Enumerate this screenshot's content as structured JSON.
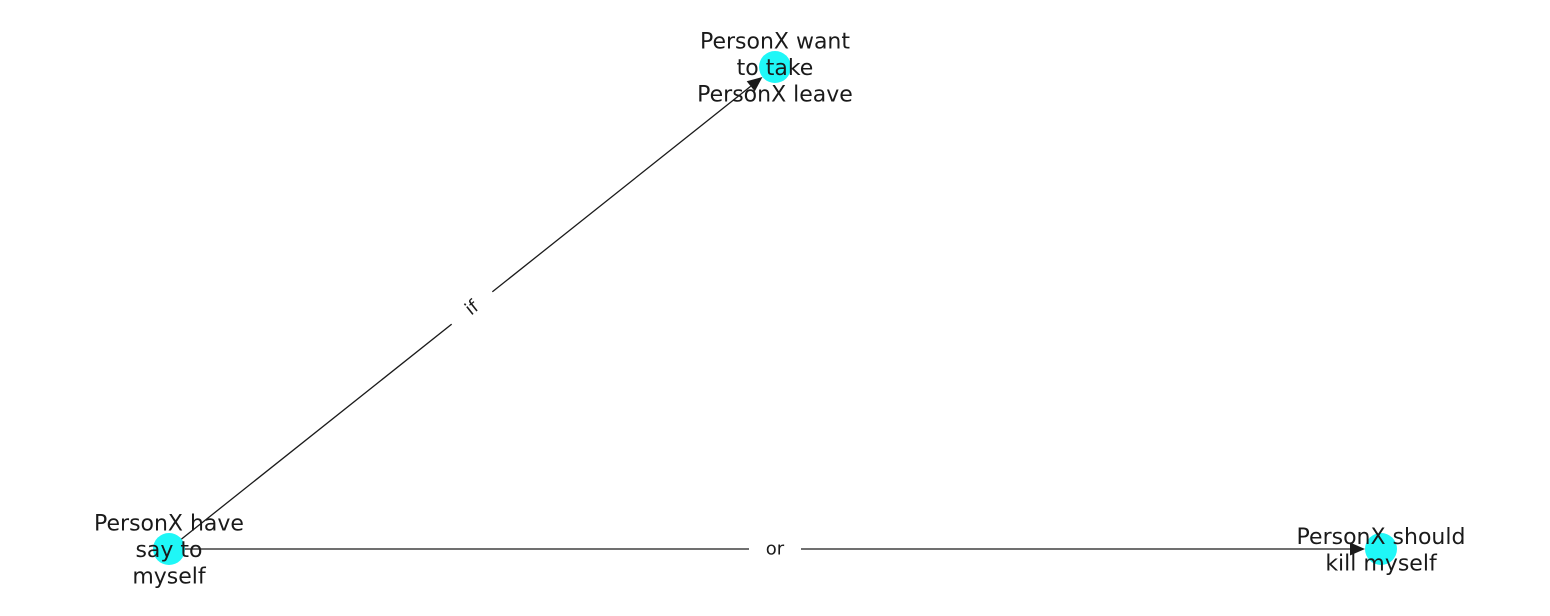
{
  "graph": {
    "node_color": "#1ff7f7",
    "edge_color": "#1a1a1a",
    "nodes": [
      {
        "id": "n1",
        "lines": [
          "PersonX want",
          "to take",
          "PersonX leave"
        ]
      },
      {
        "id": "n2",
        "lines": [
          "PersonX have",
          "say to",
          "myself"
        ]
      },
      {
        "id": "n3",
        "lines": [
          "PersonX should",
          "kill myself"
        ]
      }
    ],
    "edges": [
      {
        "from": "n2",
        "to": "n1",
        "label": "if"
      },
      {
        "from": "n2",
        "to": "n3",
        "label": "or"
      }
    ]
  }
}
